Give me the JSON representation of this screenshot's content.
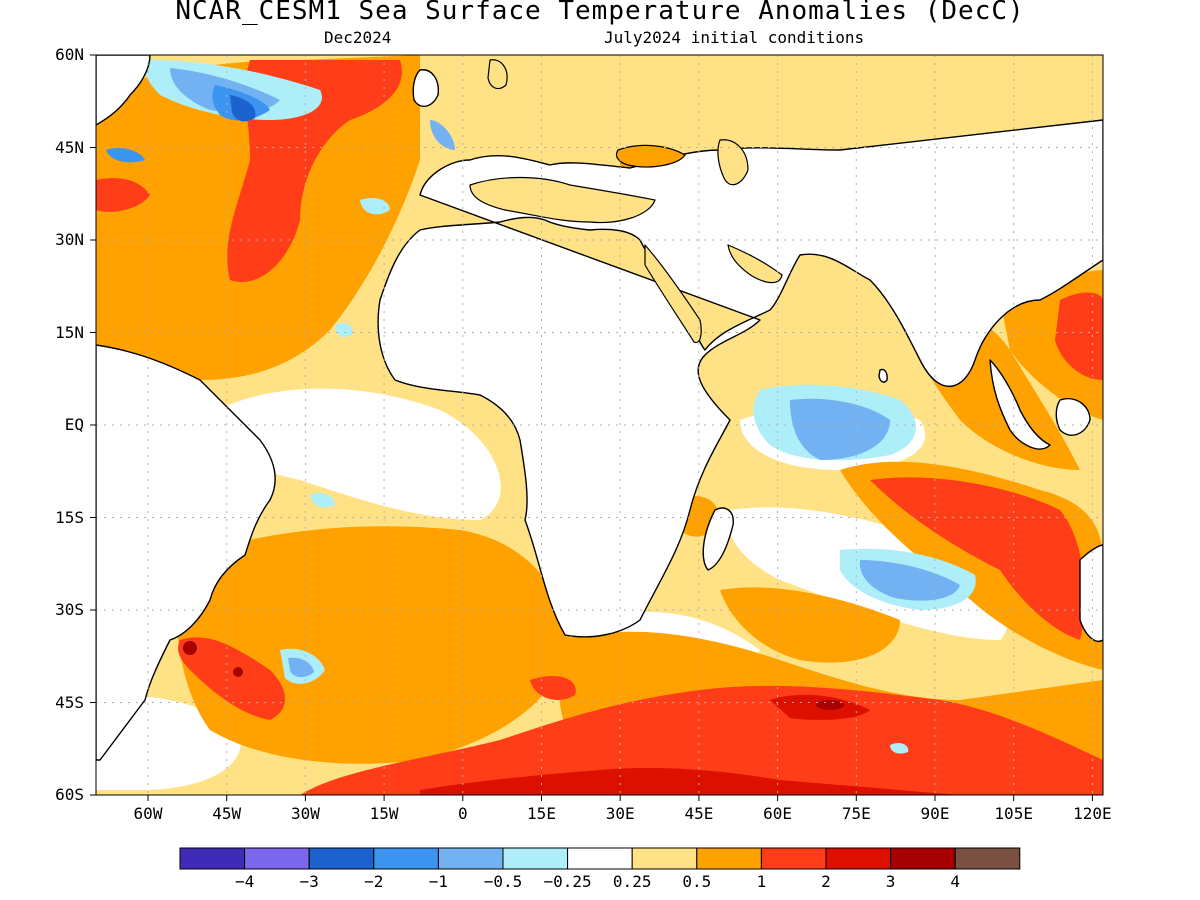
{
  "title": "NCAR_CESM1 Sea Surface Temperature Anomalies (DecC)",
  "subtitle_left": "Dec2024",
  "subtitle_right": "July2024 initial conditions",
  "lat_labels": [
    "60N",
    "45N",
    "30N",
    "15N",
    "EQ",
    "15S",
    "30S",
    "45S",
    "60S"
  ],
  "lon_labels": [
    "60W",
    "45W",
    "30W",
    "15W",
    "0",
    "15E",
    "30E",
    "45E",
    "60E",
    "75E",
    "90E",
    "105E",
    "120E"
  ],
  "colorbar": {
    "colors": [
      "#3f2bb8",
      "#7b68ee",
      "#1c62cf",
      "#3b95f0",
      "#72b2f2",
      "#aeeef8",
      "#ffffff",
      "#ffe286",
      "#ffa200",
      "#ff3d18",
      "#dd1000",
      "#a80000",
      "#7a5043"
    ],
    "labels": [
      "−4",
      "−3",
      "−2",
      "−1",
      "−0.5",
      "−0.25",
      "0.25",
      "0.5",
      "1",
      "2",
      "3",
      "4"
    ]
  },
  "colors": {
    "land": "#ffffff",
    "coastline": "#000000",
    "grid": "#b0b0b0"
  }
}
